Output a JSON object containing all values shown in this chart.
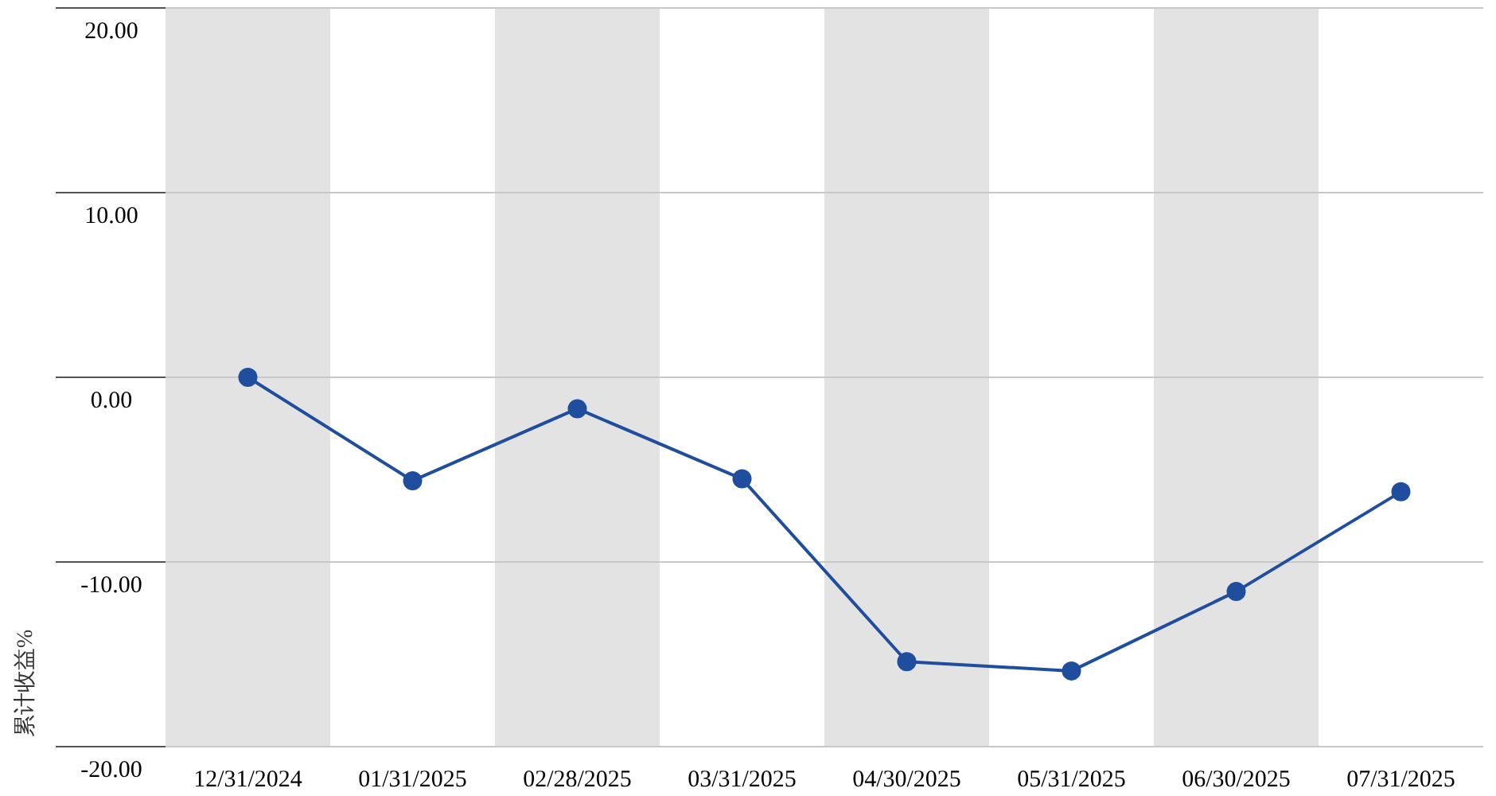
{
  "chart_data": {
    "type": "line",
    "ylabel": "累计收益%",
    "categories": [
      "12/31/2024",
      "01/31/2025",
      "02/28/2025",
      "03/31/2025",
      "04/30/2025",
      "05/31/2025",
      "06/30/2025",
      "07/31/2025"
    ],
    "series": [
      {
        "color": "#1f4e9f",
        "values": [
          0,
          -5.6,
          -1.7,
          -5.5,
          -15.4,
          -15.9,
          -11.6,
          -6.2
        ]
      }
    ],
    "ylim": [
      -20,
      20
    ],
    "yticks": [
      {
        "value": -20,
        "label": "-20.00"
      },
      {
        "value": -10,
        "label": "-10.00"
      },
      {
        "value": 0,
        "label": "0.00"
      },
      {
        "value": 10,
        "label": "10.00"
      },
      {
        "value": 20,
        "label": "20.00"
      }
    ],
    "bands": [
      {
        "axis": "x",
        "from": "12/31/2024",
        "to": "12/31/2024",
        "color": "#e3e3e3"
      },
      {
        "axis": "x",
        "from": "02/28/2025",
        "to": "02/28/2025",
        "color": "#e3e3e3"
      },
      {
        "axis": "x",
        "from": "04/30/2025",
        "to": "04/30/2025",
        "color": "#e3e3e3"
      },
      {
        "axis": "x",
        "from": "06/30/2025",
        "to": "06/30/2025",
        "color": "#e3e3e3"
      }
    ],
    "grid": "y",
    "marker": "circle",
    "line_style": "solid"
  }
}
